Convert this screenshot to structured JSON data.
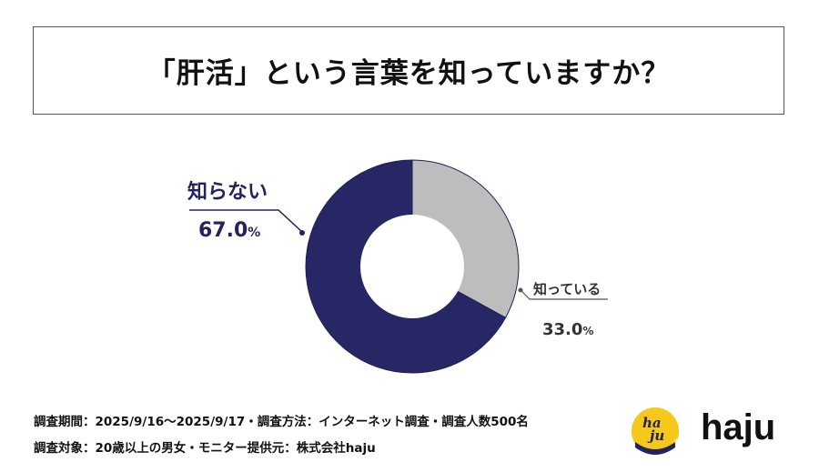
{
  "title": "「肝活」という言葉を知っていますか？",
  "chart_data": {
    "type": "pie",
    "donut": true,
    "slices": [
      {
        "label": "知っている",
        "value": 33.0,
        "value_text": "33.0",
        "unit": "%",
        "color": "#bdbdbd"
      },
      {
        "label": "知らない",
        "value": 67.0,
        "value_text": "67.0",
        "unit": "%",
        "color": "#272765"
      }
    ],
    "start": "12 o'clock",
    "direction": "clockwise"
  },
  "footer": {
    "line1": "調査期間：2025/9/16～2025/9/17・調査方法：インターネット調査・調査人数500名",
    "line2": "調査対象：20歳以上の男女・モニター提供元：株式会社haju"
  },
  "brand": {
    "name": "haju",
    "mark_text": "haju",
    "mark_color": "#f5c81a"
  }
}
